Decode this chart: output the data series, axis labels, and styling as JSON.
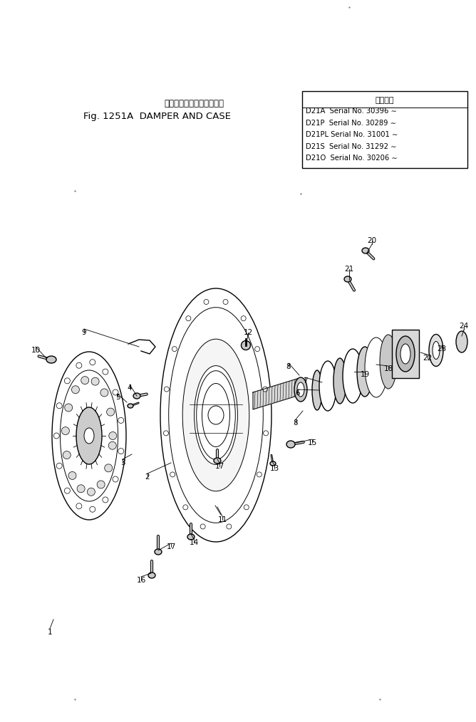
{
  "title_japanese": "ダンパ・　および　ケース",
  "title_english": "Fig. 1251A  DAMPER AND CASE",
  "box_header": "適用号機",
  "serial_lines": [
    "D21A  Serial No. 30396 ∼",
    "D21P  Serial No. 30289 ∼",
    "D21PL Serial No. 31001 ∼",
    "D21S  Serial No. 31292 ∼",
    "D21O  Serial No. 30206 ∼"
  ],
  "bg_color": "#ffffff",
  "line_color": "#000000",
  "fig_width": 6.68,
  "fig_height": 10.14,
  "dpi": 100
}
